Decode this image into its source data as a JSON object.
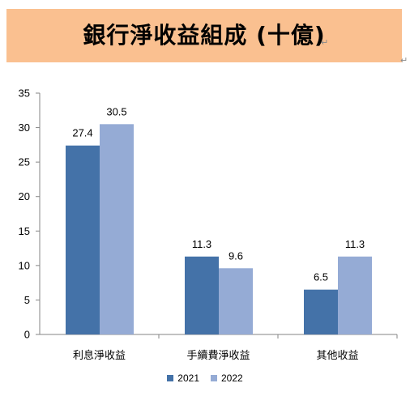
{
  "title": "銀行淨收益組成 (十億)",
  "chart_data": {
    "type": "bar",
    "title": "",
    "xlabel": "",
    "ylabel": "",
    "categories": [
      "利息淨收益",
      "手續費淨收益",
      "其他收益"
    ],
    "series": [
      {
        "name": "2021",
        "values": [
          27.4,
          11.3,
          6.5
        ],
        "color": "#4472a8",
        "labels": [
          "27.4",
          "11.3",
          "6.5"
        ]
      },
      {
        "name": "2022",
        "values": [
          30.5,
          9.6,
          11.3
        ],
        "color": "#95abd5",
        "labels": [
          "30.5",
          "9.6",
          "11.3"
        ]
      }
    ],
    "ylim": [
      0,
      35
    ],
    "yticks": [
      "0",
      "5",
      "10",
      "15",
      "20",
      "25",
      "30",
      "35"
    ],
    "grid": false,
    "legend_position": "bottom"
  }
}
